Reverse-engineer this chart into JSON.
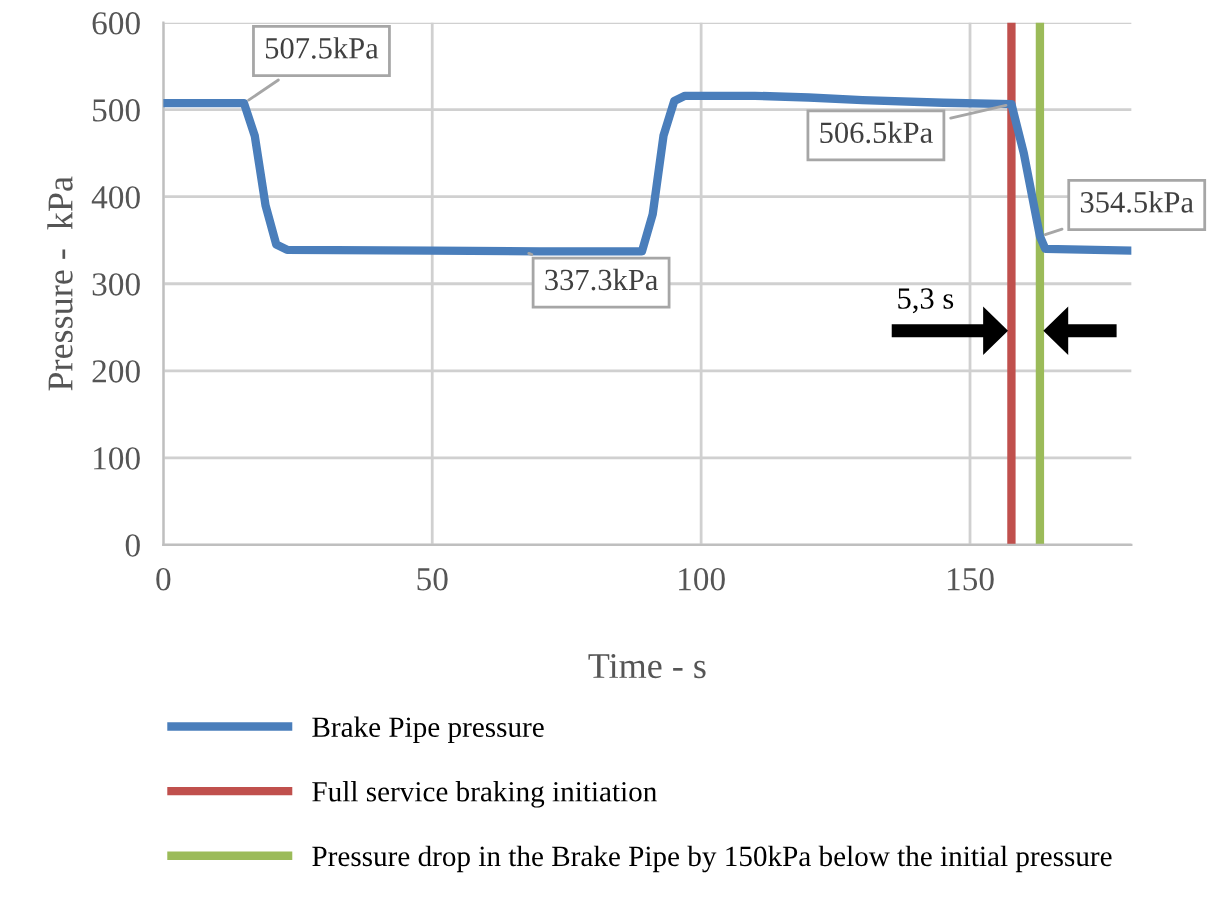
{
  "chart_data": {
    "type": "line",
    "xlabel": "Time - s",
    "ylabel": "Pressure -  kPa",
    "xlim": [
      0,
      180
    ],
    "xticks": [
      0,
      50,
      100,
      150
    ],
    "ylim": [
      0,
      600
    ],
    "yticks": [
      0,
      100,
      200,
      300,
      400,
      500,
      600
    ],
    "grid": true,
    "legend": "bottom",
    "marker": "none",
    "line_style": "solid",
    "series": [
      {
        "name": "Brake Pipe pressure",
        "color": "#4a7ebb",
        "x": [
          0,
          15,
          17,
          19,
          21,
          23,
          50,
          70,
          89,
          91,
          93,
          95,
          97,
          110,
          120,
          130,
          145,
          157.7,
          160,
          163,
          164,
          180
        ],
        "values": [
          507.5,
          507.5,
          470,
          390,
          345,
          339,
          338,
          337.3,
          337.3,
          380,
          470,
          510,
          516,
          516,
          514,
          511,
          508,
          506.5,
          450,
          354.5,
          340,
          338
        ]
      }
    ],
    "ref_lines": [
      {
        "axis": "x",
        "value": 157.7,
        "label": "Full service braking initiation",
        "color": "#c0504d"
      },
      {
        "axis": "x",
        "value": 163,
        "label": "Pressure drop in the Brake Pipe by 150kPa below the initial pressure",
        "color": "#9bbb59"
      }
    ],
    "annotations": [
      {
        "text": "507.5kPa",
        "x": 15,
        "y": 507.5
      },
      {
        "text": "337.3kPa",
        "x": 67,
        "y": 337.3
      },
      {
        "text": "506.5kPa",
        "x": 157.7,
        "y": 506.5
      },
      {
        "text": "354.5kPa",
        "x": 163,
        "y": 354.5
      },
      "5,3 s"
    ]
  }
}
